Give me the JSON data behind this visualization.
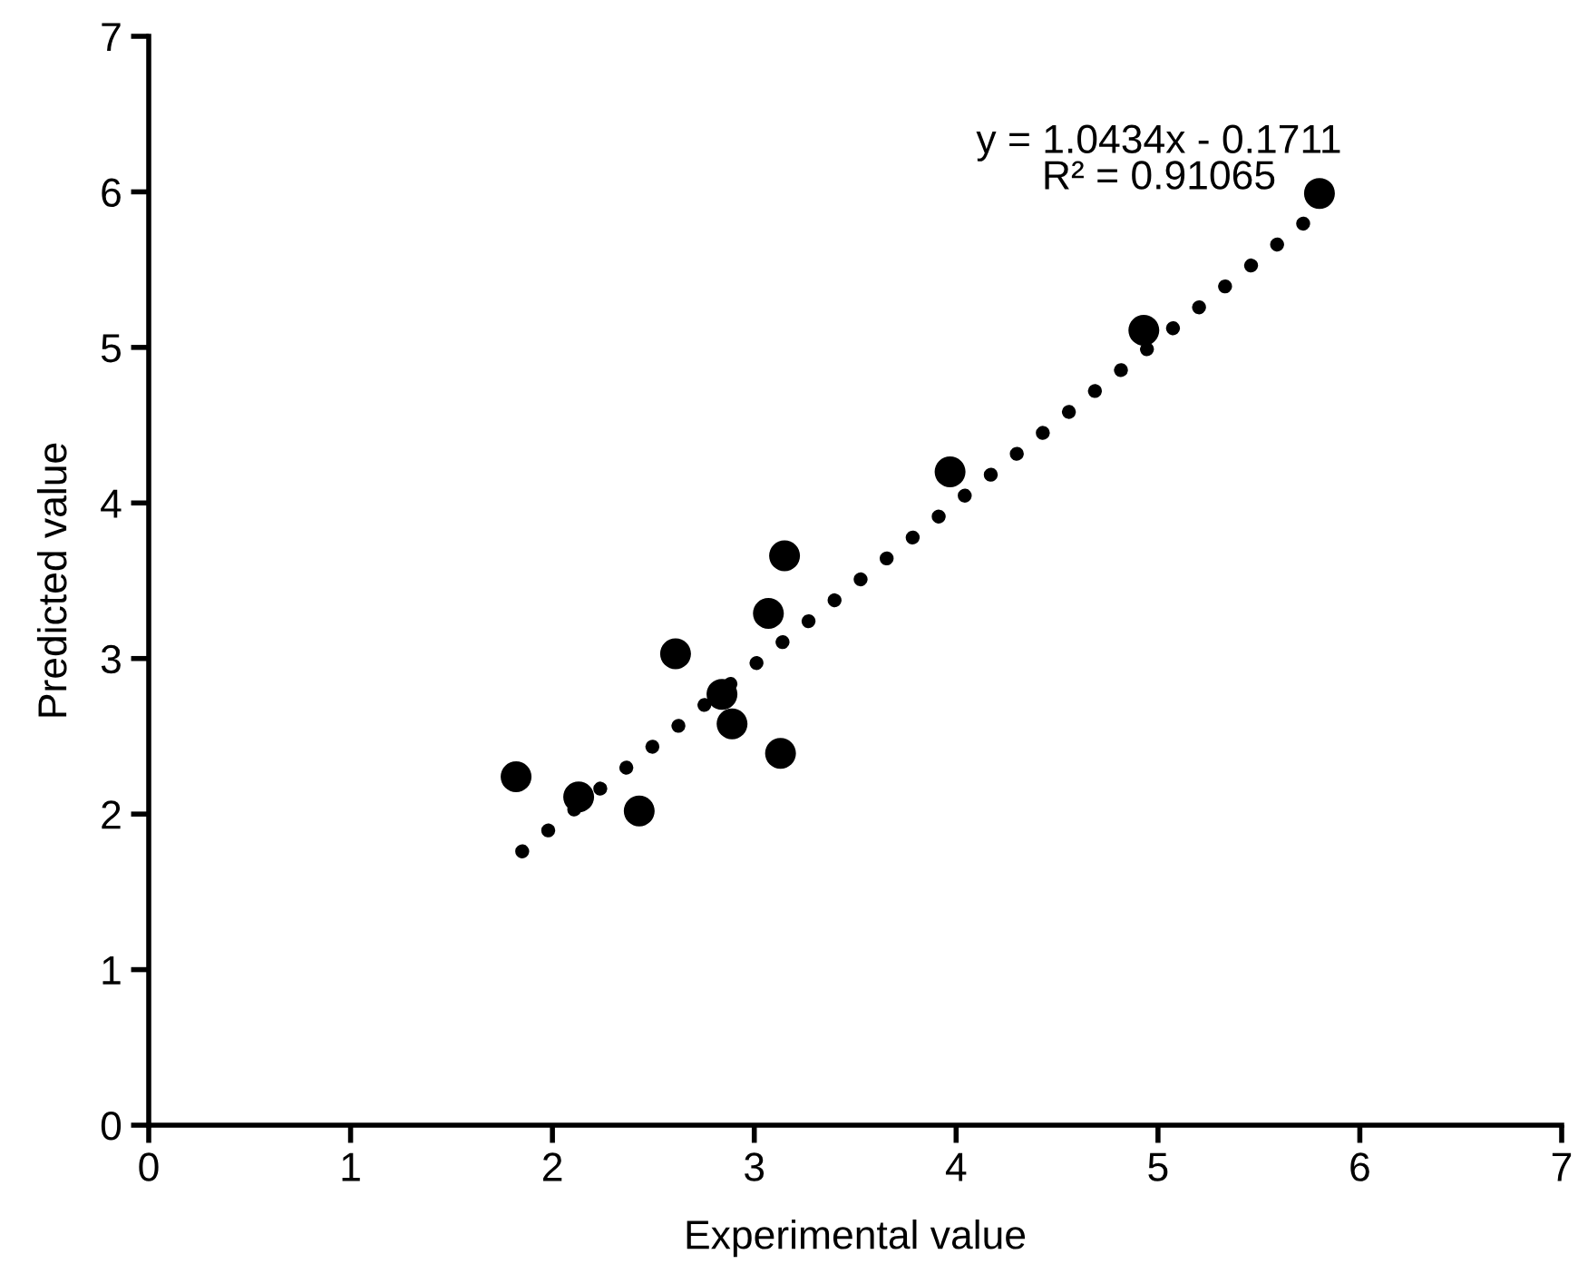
{
  "chart_data": {
    "type": "scatter",
    "xlabel": "Experimental value",
    "ylabel": "Predicted value",
    "xlim": [
      0,
      7
    ],
    "ylim": [
      0,
      7
    ],
    "xticks": [
      0,
      1,
      2,
      3,
      4,
      5,
      6,
      7
    ],
    "yticks": [
      0,
      1,
      2,
      3,
      4,
      5,
      6,
      7
    ],
    "grid": false,
    "legend": false,
    "marker": "circle",
    "series": [
      {
        "color": "#000000",
        "x": [
          1.82,
          2.13,
          2.43,
          2.61,
          2.84,
          2.89,
          3.07,
          3.13,
          3.15,
          3.97,
          4.93,
          5.8
        ],
        "values": [
          2.24,
          2.11,
          2.02,
          3.03,
          2.77,
          2.58,
          3.29,
          2.39,
          3.66,
          4.2,
          5.11,
          5.99
        ]
      },
      {
        "type": "line",
        "color": "#000000",
        "line_style": "dotted",
        "marker": "none",
        "x": [
          1.85,
          5.8
        ],
        "values": [
          1.76,
          5.88
        ]
      }
    ],
    "annotations": [
      "y = 1.0434x - 0.1711\nR² = 0.91065"
    ]
  }
}
